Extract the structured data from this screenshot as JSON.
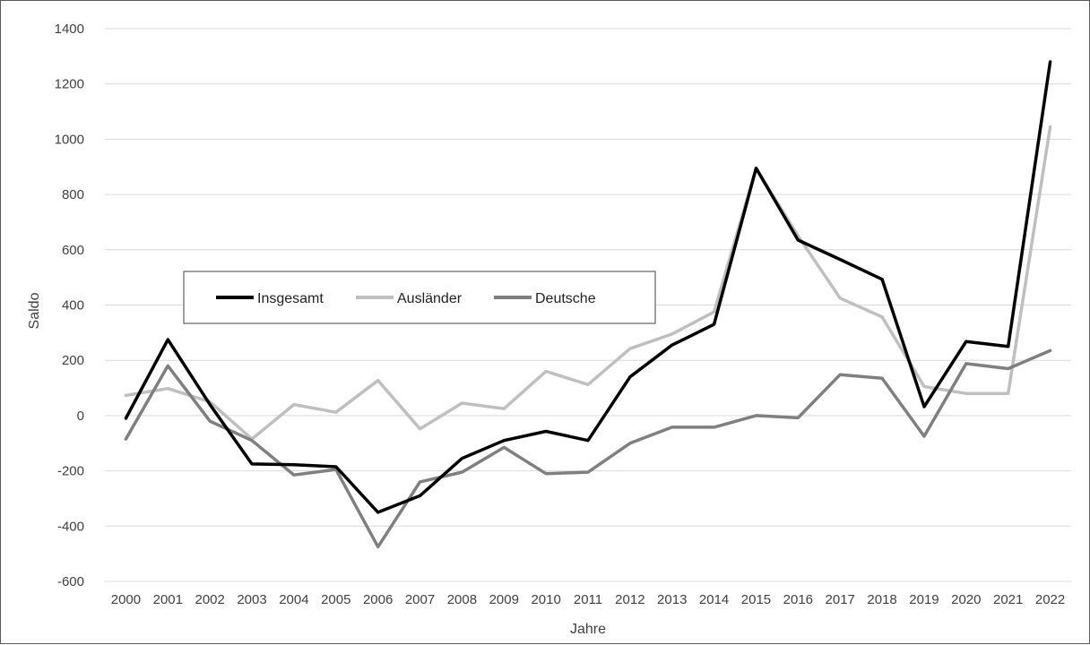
{
  "chart_data": {
    "type": "line",
    "title": "",
    "xlabel": "Jahre",
    "ylabel": "Saldo",
    "categories": [
      "2000",
      "2001",
      "2002",
      "2003",
      "2004",
      "2005",
      "2006",
      "2007",
      "2008",
      "2009",
      "2010",
      "2011",
      "2012",
      "2013",
      "2014",
      "2015",
      "2016",
      "2017",
      "2018",
      "2019",
      "2020",
      "2021",
      "2022"
    ],
    "ylim": [
      -600,
      1400
    ],
    "yticks": [
      -600,
      -400,
      -200,
      0,
      200,
      400,
      600,
      800,
      1000,
      1200,
      1400
    ],
    "grid": true,
    "legend_position": "inside-left",
    "series": [
      {
        "name": "Insgesamt",
        "color": "#000000",
        "values": [
          -10,
          275,
          40,
          -175,
          -178,
          -185,
          -350,
          -290,
          -155,
          -90,
          -57,
          -90,
          140,
          255,
          330,
          895,
          635,
          565,
          493,
          32,
          268,
          250,
          1280
        ]
      },
      {
        "name": "Ausländer",
        "color": "#bfbfbf",
        "values": [
          73,
          98,
          50,
          -85,
          40,
          12,
          127,
          -48,
          45,
          25,
          160,
          112,
          242,
          295,
          375,
          895,
          650,
          425,
          357,
          105,
          80,
          80,
          1045
        ]
      },
      {
        "name": "Deutsche",
        "color": "#7f7f7f",
        "values": [
          -85,
          180,
          -20,
          -90,
          -215,
          -195,
          -475,
          -240,
          -205,
          -115,
          -210,
          -205,
          -100,
          -42,
          -42,
          0,
          -8,
          148,
          135,
          -75,
          188,
          170,
          235
        ]
      }
    ]
  }
}
